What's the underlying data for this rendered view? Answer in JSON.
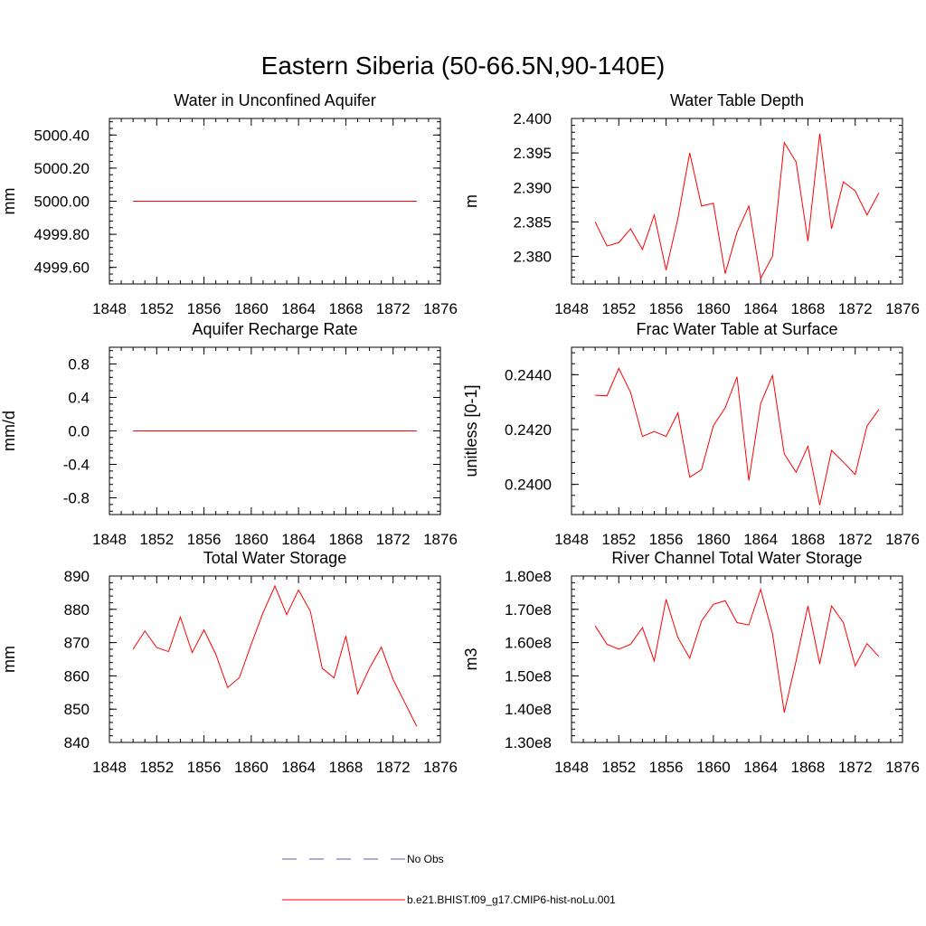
{
  "title": "Eastern Siberia (50-66.5N,90-140E)",
  "colors": {
    "model": "#ff0000",
    "obs": "#5a5ab4",
    "axes": "#000000"
  },
  "legend": {
    "obs_label": "No Obs",
    "model_label": "b.e21.BHIST.f09_g17.CMIP6-hist-noLu.001"
  },
  "chart_data": [
    {
      "type": "line",
      "title": "Water in Unconfined Aquifer",
      "ylabel": "mm",
      "xlim": [
        1848,
        1876
      ],
      "ylim": [
        4999.5,
        5000.5
      ],
      "xticks": [
        1848,
        1852,
        1856,
        1860,
        1864,
        1868,
        1872,
        1876
      ],
      "yticks": [
        4999.6,
        4999.8,
        5000.0,
        5000.2,
        5000.4
      ],
      "ytick_labels": [
        "4999.60",
        "4999.80",
        "5000.00",
        "5000.20",
        "5000.40"
      ],
      "x": [
        1850,
        1851,
        1852,
        1853,
        1854,
        1855,
        1856,
        1857,
        1858,
        1859,
        1860,
        1861,
        1862,
        1863,
        1864,
        1865,
        1866,
        1867,
        1868,
        1869,
        1870,
        1871,
        1872,
        1873,
        1874
      ],
      "y": [
        5000,
        5000,
        5000,
        5000,
        5000,
        5000,
        5000,
        5000,
        5000,
        5000,
        5000,
        5000,
        5000,
        5000,
        5000,
        5000,
        5000,
        5000,
        5000,
        5000,
        5000,
        5000,
        5000,
        5000,
        5000
      ]
    },
    {
      "type": "line",
      "title": "Water Table Depth",
      "ylabel": "m",
      "xlim": [
        1848,
        1876
      ],
      "ylim": [
        2.376,
        2.4
      ],
      "xticks": [
        1848,
        1852,
        1856,
        1860,
        1864,
        1868,
        1872,
        1876
      ],
      "yticks": [
        2.38,
        2.385,
        2.39,
        2.395,
        2.4
      ],
      "ytick_labels": [
        "2.380",
        "2.385",
        "2.390",
        "2.395",
        "2.400"
      ],
      "x": [
        1850,
        1851,
        1852,
        1853,
        1854,
        1855,
        1856,
        1857,
        1858,
        1859,
        1860,
        1861,
        1862,
        1863,
        1864,
        1865,
        1866,
        1867,
        1868,
        1869,
        1870,
        1871,
        1872,
        1873,
        1874
      ],
      "y": [
        2.385,
        2.3815,
        2.382,
        2.384,
        2.381,
        2.386,
        2.378,
        2.3855,
        2.395,
        2.3873,
        2.3877,
        2.3775,
        2.3835,
        2.3873,
        2.3768,
        2.38,
        2.3965,
        2.3937,
        2.3822,
        2.3978,
        2.384,
        2.3908,
        2.3895,
        2.386,
        2.3892
      ]
    },
    {
      "type": "line",
      "title": "Aquifer Recharge Rate",
      "ylabel": "mm/d",
      "xlim": [
        1848,
        1876
      ],
      "ylim": [
        -1.0,
        1.0
      ],
      "xticks": [
        1848,
        1852,
        1856,
        1860,
        1864,
        1868,
        1872,
        1876
      ],
      "yticks": [
        -0.8,
        -0.4,
        0.0,
        0.4,
        0.8
      ],
      "ytick_labels": [
        "-0.8",
        "-0.4",
        "0.0",
        "0.4",
        "0.8"
      ],
      "x": [
        1850,
        1851,
        1852,
        1853,
        1854,
        1855,
        1856,
        1857,
        1858,
        1859,
        1860,
        1861,
        1862,
        1863,
        1864,
        1865,
        1866,
        1867,
        1868,
        1869,
        1870,
        1871,
        1872,
        1873,
        1874
      ],
      "y": [
        0,
        0,
        0,
        0,
        0,
        0,
        0,
        0,
        0,
        0,
        0,
        0,
        0,
        0,
        0,
        0,
        0,
        0,
        0,
        0,
        0,
        0,
        0,
        0,
        0
      ]
    },
    {
      "type": "line",
      "title": "Frac Water Table at Surface",
      "ylabel": "unitless [0-1]",
      "xlim": [
        1848,
        1876
      ],
      "ylim": [
        0.2389,
        0.245
      ],
      "xticks": [
        1848,
        1852,
        1856,
        1860,
        1864,
        1868,
        1872,
        1876
      ],
      "yticks": [
        0.24,
        0.242,
        0.244
      ],
      "ytick_labels": [
        "0.2400",
        "0.2420",
        "0.2440"
      ],
      "x": [
        1850,
        1851,
        1852,
        1853,
        1854,
        1855,
        1856,
        1857,
        1858,
        1859,
        1860,
        1861,
        1862,
        1863,
        1864,
        1865,
        1866,
        1867,
        1868,
        1869,
        1870,
        1871,
        1872,
        1873,
        1874
      ],
      "y": [
        0.24325,
        0.24323,
        0.24423,
        0.24335,
        0.24175,
        0.24193,
        0.24175,
        0.24261,
        0.24026,
        0.24054,
        0.24214,
        0.24279,
        0.24392,
        0.24014,
        0.24294,
        0.24397,
        0.24111,
        0.24044,
        0.24139,
        0.23924,
        0.24124,
        0.24081,
        0.24036,
        0.24213,
        0.24273
      ]
    },
    {
      "type": "line",
      "title": "Total Water Storage",
      "ylabel": "mm",
      "xlim": [
        1848,
        1876
      ],
      "ylim": [
        840,
        890
      ],
      "xticks": [
        1848,
        1852,
        1856,
        1860,
        1864,
        1868,
        1872,
        1876
      ],
      "yticks": [
        840,
        850,
        860,
        870,
        880,
        890
      ],
      "ytick_labels": [
        "840",
        "850",
        "860",
        "870",
        "880",
        "890"
      ],
      "x": [
        1850,
        1851,
        1852,
        1853,
        1854,
        1855,
        1856,
        1857,
        1858,
        1859,
        1860,
        1861,
        1862,
        1863,
        1864,
        1865,
        1866,
        1867,
        1868,
        1869,
        1870,
        1871,
        1872,
        1873,
        1874
      ],
      "y": [
        868,
        873.5,
        868.5,
        867.3,
        877.7,
        867,
        873.8,
        866.5,
        856.5,
        859.5,
        869.5,
        879,
        887,
        878.4,
        885.8,
        879.4,
        862.3,
        859.4,
        872,
        854.6,
        862.3,
        868.6,
        858.9,
        851.9,
        844.8
      ]
    },
    {
      "type": "line",
      "title": "River Channel Total Water Storage",
      "ylabel": "m3",
      "xlim": [
        1848,
        1876
      ],
      "ylim": [
        130000000,
        180000000
      ],
      "xticks": [
        1848,
        1852,
        1856,
        1860,
        1864,
        1868,
        1872,
        1876
      ],
      "yticks": [
        130000000,
        140000000,
        150000000,
        160000000,
        170000000,
        180000000
      ],
      "ytick_labels": [
        "1.30e8",
        "1.40e8",
        "1.50e8",
        "1.60e8",
        "1.70e8",
        "1.80e8"
      ],
      "x": [
        1850,
        1851,
        1852,
        1853,
        1854,
        1855,
        1856,
        1857,
        1858,
        1859,
        1860,
        1861,
        1862,
        1863,
        1864,
        1865,
        1866,
        1867,
        1868,
        1869,
        1870,
        1871,
        1872,
        1873,
        1874
      ],
      "y": [
        165000000,
        159500000,
        158000000,
        159500000,
        164500000,
        154500000,
        173000000,
        161500000,
        155300000,
        166500000,
        171500000,
        172600000,
        166000000,
        165300000,
        176000000,
        162700000,
        139000000,
        154500000,
        171000000,
        153600000,
        171000000,
        166000000,
        153000000,
        159700000,
        155800000
      ]
    }
  ]
}
